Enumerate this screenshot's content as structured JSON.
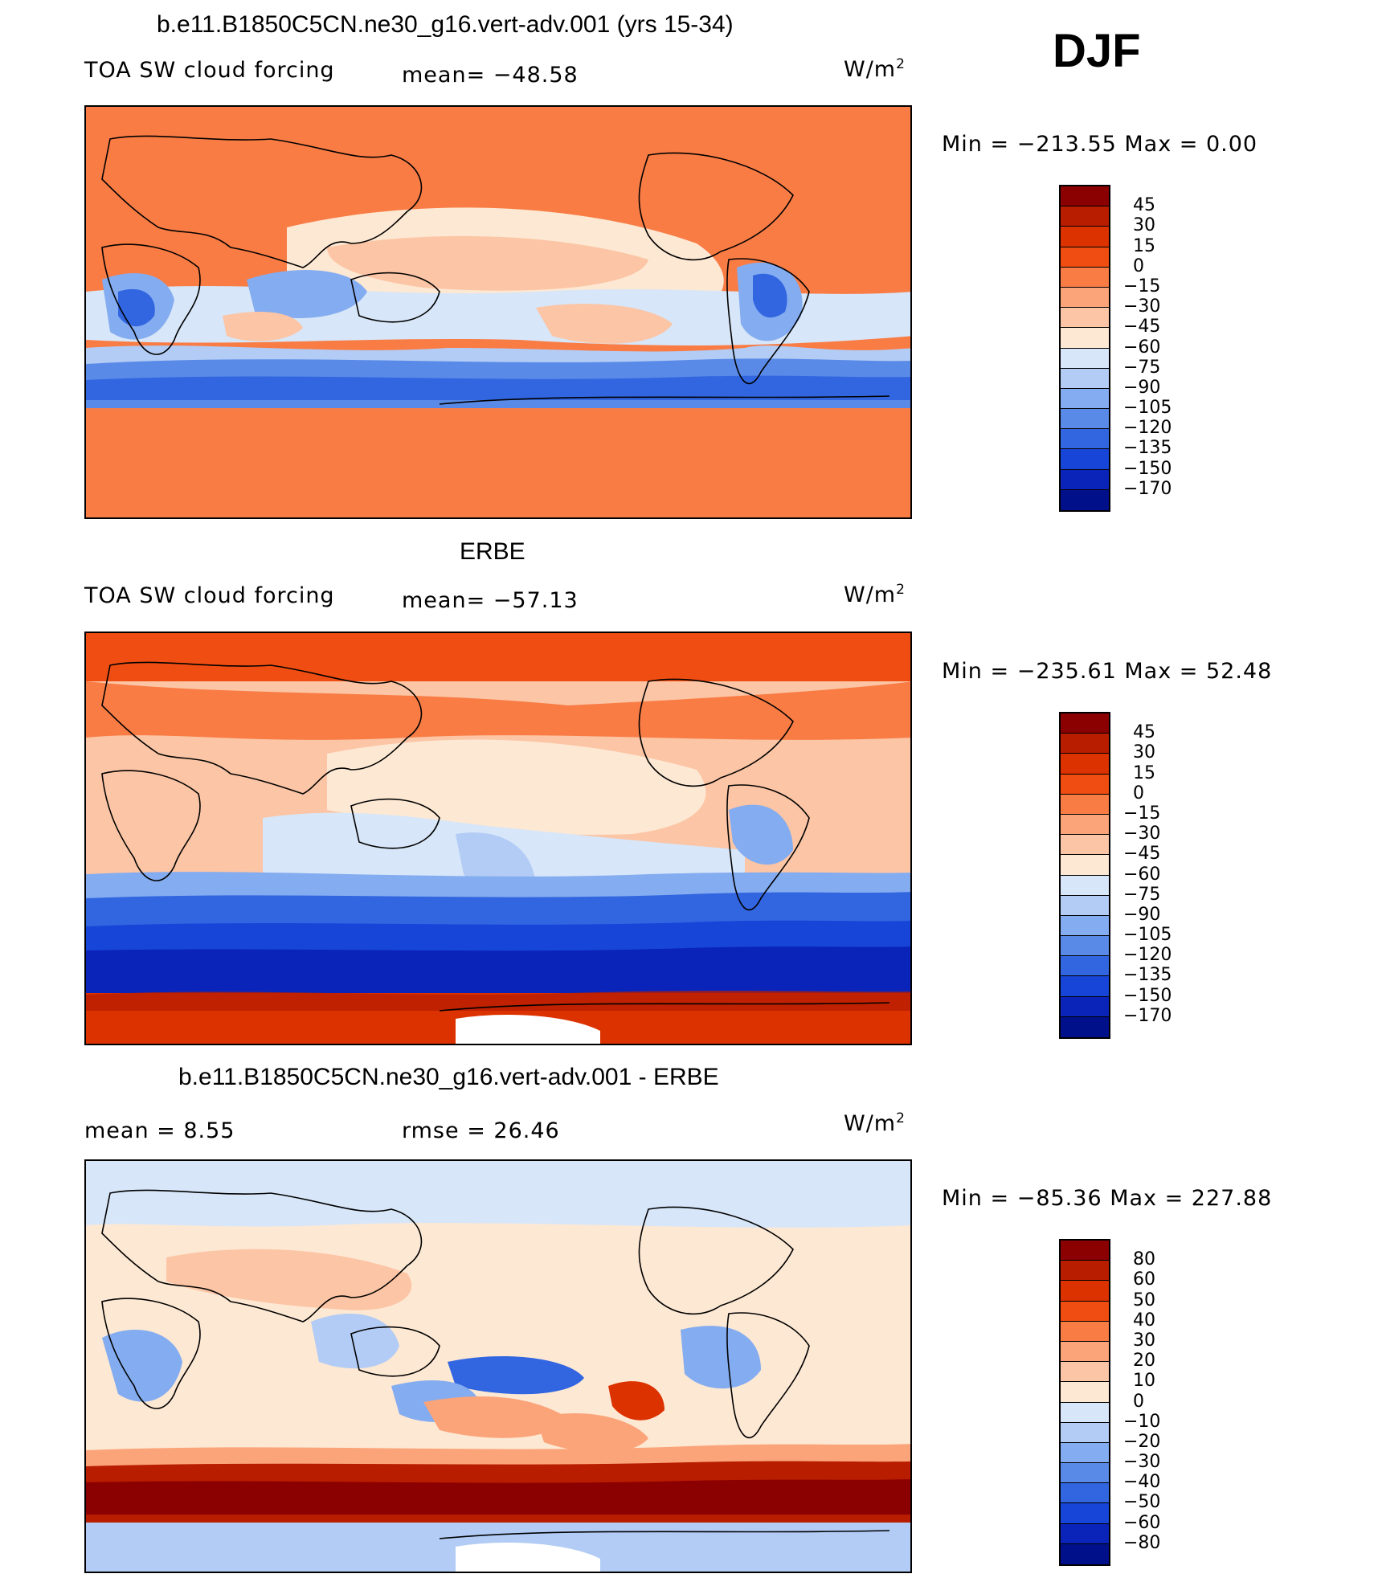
{
  "season": "DJF",
  "units_base": "W/m",
  "units_exp": "2",
  "panels": [
    {
      "title": "b.e11.B1850C5CN.ne30_g16.vert-adv.001 (yrs 15-34)",
      "variable": "TOA SW cloud forcing",
      "stat": "mean= −48.58",
      "min_max": "Min  =  −213.55  Max  =     0.00",
      "colorbar": {
        "labels": [
          "45",
          "30",
          "15",
          "0",
          "−15",
          "−30",
          "−45",
          "−60",
          "−75",
          "−90",
          "−105",
          "−120",
          "−135",
          "−150",
          "−170"
        ],
        "colors": [
          "#8b0000",
          "#b91d00",
          "#dc3200",
          "#f04d12",
          "#f97c45",
          "#fba479",
          "#fcc5a5",
          "#fde8d3",
          "#d7e6f8",
          "#b2ccf5",
          "#84acf0",
          "#5a8ae8",
          "#3266e0",
          "#1745d8",
          "#0a24b9",
          "#00108a"
        ]
      }
    },
    {
      "title": "ERBE",
      "variable": "TOA SW cloud forcing",
      "stat": "mean= −57.13",
      "min_max": "Min  =  −235.61  Max  =   52.48",
      "colorbar": {
        "labels": [
          "45",
          "30",
          "15",
          "0",
          "−15",
          "−30",
          "−45",
          "−60",
          "−75",
          "−90",
          "−105",
          "−120",
          "−135",
          "−150",
          "−170"
        ],
        "colors": [
          "#8b0000",
          "#b91d00",
          "#dc3200",
          "#f04d12",
          "#f97c45",
          "#fba479",
          "#fcc5a5",
          "#fde8d3",
          "#d7e6f8",
          "#b2ccf5",
          "#84acf0",
          "#5a8ae8",
          "#3266e0",
          "#1745d8",
          "#0a24b9",
          "#00108a"
        ]
      }
    },
    {
      "title": "b.e11.B1850C5CN.ne30_g16.vert-adv.001 - ERBE",
      "variable": "mean  =     8.55",
      "stat": "rmse  =   26.46",
      "min_max": "Min  =  −85.36  Max  =  227.88",
      "colorbar": {
        "labels": [
          "80",
          "60",
          "50",
          "40",
          "30",
          "20",
          "10",
          "0",
          "−10",
          "−20",
          "−30",
          "−40",
          "−50",
          "−60",
          "−80"
        ],
        "colors": [
          "#8b0000",
          "#b91d00",
          "#dc3200",
          "#f04d12",
          "#f97c45",
          "#fba479",
          "#fcc5a5",
          "#fde8d3",
          "#d7e6f8",
          "#b2ccf5",
          "#84acf0",
          "#5a8ae8",
          "#3266e0",
          "#1745d8",
          "#0a24b9",
          "#00108a"
        ]
      }
    }
  ],
  "map_colors": {
    "neutral_warm": "#f97c45",
    "light_warm": "#fcc5a5",
    "pale": "#fde8d3",
    "pale_blue": "#d7e6f8",
    "mid_blue": "#84acf0",
    "deep_blue": "#3266e0",
    "navy": "#0a24b9",
    "dark_red": "#b91d00",
    "red": "#dc3200"
  }
}
